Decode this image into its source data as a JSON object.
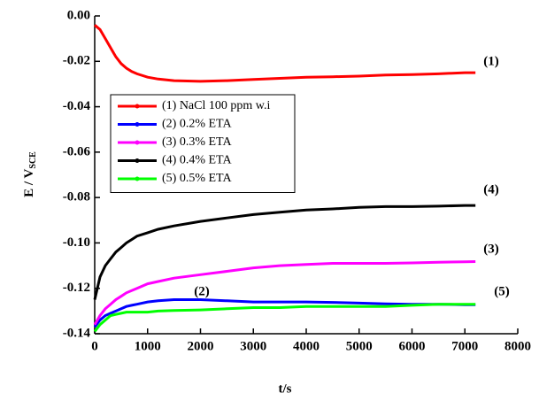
{
  "chart_data": {
    "type": "line",
    "xlabel": "t/s",
    "ylabel": {
      "text": "E / V",
      "subscript": "SCE"
    },
    "xlim": [
      0,
      8000
    ],
    "ylim": [
      -0.14,
      0
    ],
    "xticks": [
      0,
      1000,
      2000,
      3000,
      4000,
      5000,
      6000,
      7000,
      8000
    ],
    "yticks": [
      {
        "value": 0,
        "label": "0.00"
      },
      {
        "value": -0.02,
        "label": "-0.02"
      },
      {
        "value": -0.04,
        "label": "-0.04"
      },
      {
        "value": -0.06,
        "label": "-0.06"
      },
      {
        "value": -0.08,
        "label": "-0.08"
      },
      {
        "value": -0.1,
        "label": "-0.10"
      },
      {
        "value": -0.12,
        "label": "-0.12"
      },
      {
        "value": -0.14,
        "label": "-0.14"
      }
    ],
    "x": [
      0,
      100,
      200,
      300,
      400,
      500,
      600,
      700,
      800,
      1000,
      1200,
      1500,
      2000,
      2500,
      3000,
      3500,
      4000,
      4500,
      5000,
      5500,
      6000,
      6500,
      7000,
      7200
    ],
    "series": [
      {
        "name": "(1) NaCl 100 ppm w.i",
        "color": "#ff0000",
        "values": [
          -0.004,
          -0.006,
          -0.01,
          -0.014,
          -0.018,
          -0.021,
          -0.023,
          -0.0245,
          -0.0255,
          -0.027,
          -0.0278,
          -0.0285,
          -0.0288,
          -0.0285,
          -0.028,
          -0.0275,
          -0.027,
          -0.0268,
          -0.0265,
          -0.026,
          -0.0258,
          -0.0255,
          -0.025,
          -0.025
        ]
      },
      {
        "name": "(2) 0.2% ETA",
        "color": "#0000ff",
        "values": [
          -0.137,
          -0.134,
          -0.132,
          -0.131,
          -0.13,
          -0.129,
          -0.128,
          -0.1275,
          -0.127,
          -0.126,
          -0.1255,
          -0.125,
          -0.125,
          -0.1255,
          -0.126,
          -0.126,
          -0.126,
          -0.1262,
          -0.1265,
          -0.1268,
          -0.127,
          -0.127,
          -0.1272,
          -0.1272
        ]
      },
      {
        "name": "(3) 0.3% ETA",
        "color": "#ff00ff",
        "values": [
          -0.136,
          -0.132,
          -0.129,
          -0.127,
          -0.125,
          -0.1235,
          -0.122,
          -0.121,
          -0.12,
          -0.118,
          -0.117,
          -0.1155,
          -0.114,
          -0.1125,
          -0.111,
          -0.11,
          -0.1095,
          -0.109,
          -0.109,
          -0.109,
          -0.1088,
          -0.1085,
          -0.1083,
          -0.1082
        ]
      },
      {
        "name": "(4) 0.4% ETA",
        "color": "#000000",
        "values": [
          -0.125,
          -0.115,
          -0.11,
          -0.107,
          -0.104,
          -0.102,
          -0.1,
          -0.0985,
          -0.097,
          -0.0955,
          -0.094,
          -0.0925,
          -0.0905,
          -0.089,
          -0.0875,
          -0.0865,
          -0.0855,
          -0.085,
          -0.0843,
          -0.084,
          -0.084,
          -0.0838,
          -0.0835,
          -0.0835
        ]
      },
      {
        "name": "(5) 0.5% ETA",
        "color": "#00ff00",
        "values": [
          -0.139,
          -0.136,
          -0.134,
          -0.132,
          -0.1315,
          -0.131,
          -0.1305,
          -0.1305,
          -0.1305,
          -0.1305,
          -0.13,
          -0.1298,
          -0.1295,
          -0.129,
          -0.1285,
          -0.1285,
          -0.128,
          -0.128,
          -0.128,
          -0.128,
          -0.1275,
          -0.127,
          -0.127,
          -0.127
        ]
      }
    ],
    "annotations": [
      "(1)",
      "(2)",
      "(3)",
      "(4)",
      "(5)"
    ],
    "legend": "upper left"
  }
}
